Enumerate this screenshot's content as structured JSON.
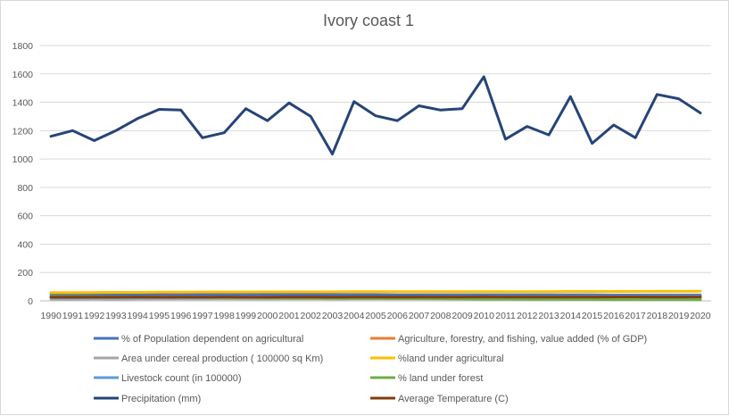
{
  "chart_data": {
    "type": "line",
    "title": "Ivory coast 1",
    "xlabel": "",
    "ylabel": "",
    "ylim": [
      0,
      1800
    ],
    "yticks": [
      0,
      200,
      400,
      600,
      800,
      1000,
      1200,
      1400,
      1600,
      1800
    ],
    "grid": true,
    "legend_position": "bottom",
    "categories": [
      "1990",
      "1991",
      "1992",
      "1993",
      "1994",
      "1995",
      "1996",
      "1997",
      "1998",
      "1999",
      "2000",
      "2001",
      "2002",
      "2003",
      "2004",
      "2005",
      "2006",
      "2007",
      "2008",
      "2009",
      "2010",
      "2011",
      "2012",
      "2013",
      "2014",
      "2015",
      "2016",
      "2017",
      "2018",
      "2019",
      "2020"
    ],
    "series": [
      {
        "name": "% of Population dependent on agricultural",
        "color": "#4472C4",
        "values": [
          48,
          47,
          47,
          47,
          46,
          46,
          46,
          45,
          45,
          45,
          45,
          44,
          44,
          44,
          44,
          44,
          43,
          43,
          43,
          43,
          43,
          42,
          42,
          42,
          42,
          42,
          41,
          41,
          41,
          41,
          41
        ]
      },
      {
        "name": "Agriculture, forestry, and fishing, value added (% of GDP)",
        "color": "#ED7D31",
        "values": [
          32,
          30,
          29,
          28,
          27,
          27,
          26,
          25,
          25,
          24,
          25,
          24,
          25,
          23,
          24,
          24,
          23,
          24,
          23,
          24,
          23,
          22,
          21,
          21,
          20,
          20,
          19,
          19,
          19,
          19,
          19
        ]
      },
      {
        "name": "Area under cereal production ( 100000 sq Km)",
        "color": "#A5A5A5",
        "values": [
          12,
          12,
          13,
          12,
          13,
          13,
          14,
          13,
          14,
          13,
          13,
          14,
          14,
          13,
          14,
          14,
          14,
          15,
          15,
          15,
          15,
          15,
          16,
          16,
          16,
          16,
          17,
          17,
          17,
          17,
          18
        ]
      },
      {
        "name": "%land under agricultural",
        "color": "#FFC000",
        "values": [
          58,
          58,
          59,
          60,
          60,
          61,
          61,
          62,
          62,
          62,
          63,
          63,
          63,
          63,
          64,
          64,
          64,
          64,
          64,
          65,
          65,
          65,
          65,
          65,
          66,
          66,
          66,
          66,
          67,
          67,
          68
        ]
      },
      {
        "name": "Livestock count (in 100000)",
        "color": "#5B9BD5",
        "values": [
          22,
          22,
          23,
          23,
          23,
          24,
          24,
          24,
          25,
          25,
          26,
          26,
          26,
          27,
          27,
          27,
          28,
          28,
          29,
          29,
          29,
          30,
          30,
          31,
          31,
          32,
          32,
          33,
          33,
          34,
          34
        ]
      },
      {
        "name": "% land under forest",
        "color": "#70AD47",
        "values": [
          32,
          31,
          30,
          29,
          28,
          27,
          26,
          25,
          24,
          23,
          22,
          21,
          20,
          19,
          18,
          17,
          16,
          15,
          14,
          13,
          12,
          12,
          11,
          11,
          10,
          10,
          9,
          9,
          9,
          9,
          8
        ]
      },
      {
        "name": "Precipitation (mm)",
        "color": "#264478",
        "values": [
          1160,
          1200,
          1130,
          1200,
          1285,
          1350,
          1345,
          1150,
          1185,
          1355,
          1270,
          1395,
          1300,
          1035,
          1405,
          1305,
          1270,
          1375,
          1345,
          1355,
          1580,
          1140,
          1230,
          1170,
          1440,
          1110,
          1240,
          1150,
          1455,
          1425,
          1325
        ]
      },
      {
        "name": "Average Temperature (C)",
        "color": "#843C0C",
        "values": [
          26,
          26,
          26,
          26,
          27,
          26,
          27,
          26,
          27,
          26,
          26,
          27,
          27,
          26,
          27,
          27,
          27,
          27,
          27,
          27,
          28,
          27,
          27,
          27,
          27,
          27,
          28,
          28,
          27,
          27,
          28
        ]
      }
    ]
  }
}
